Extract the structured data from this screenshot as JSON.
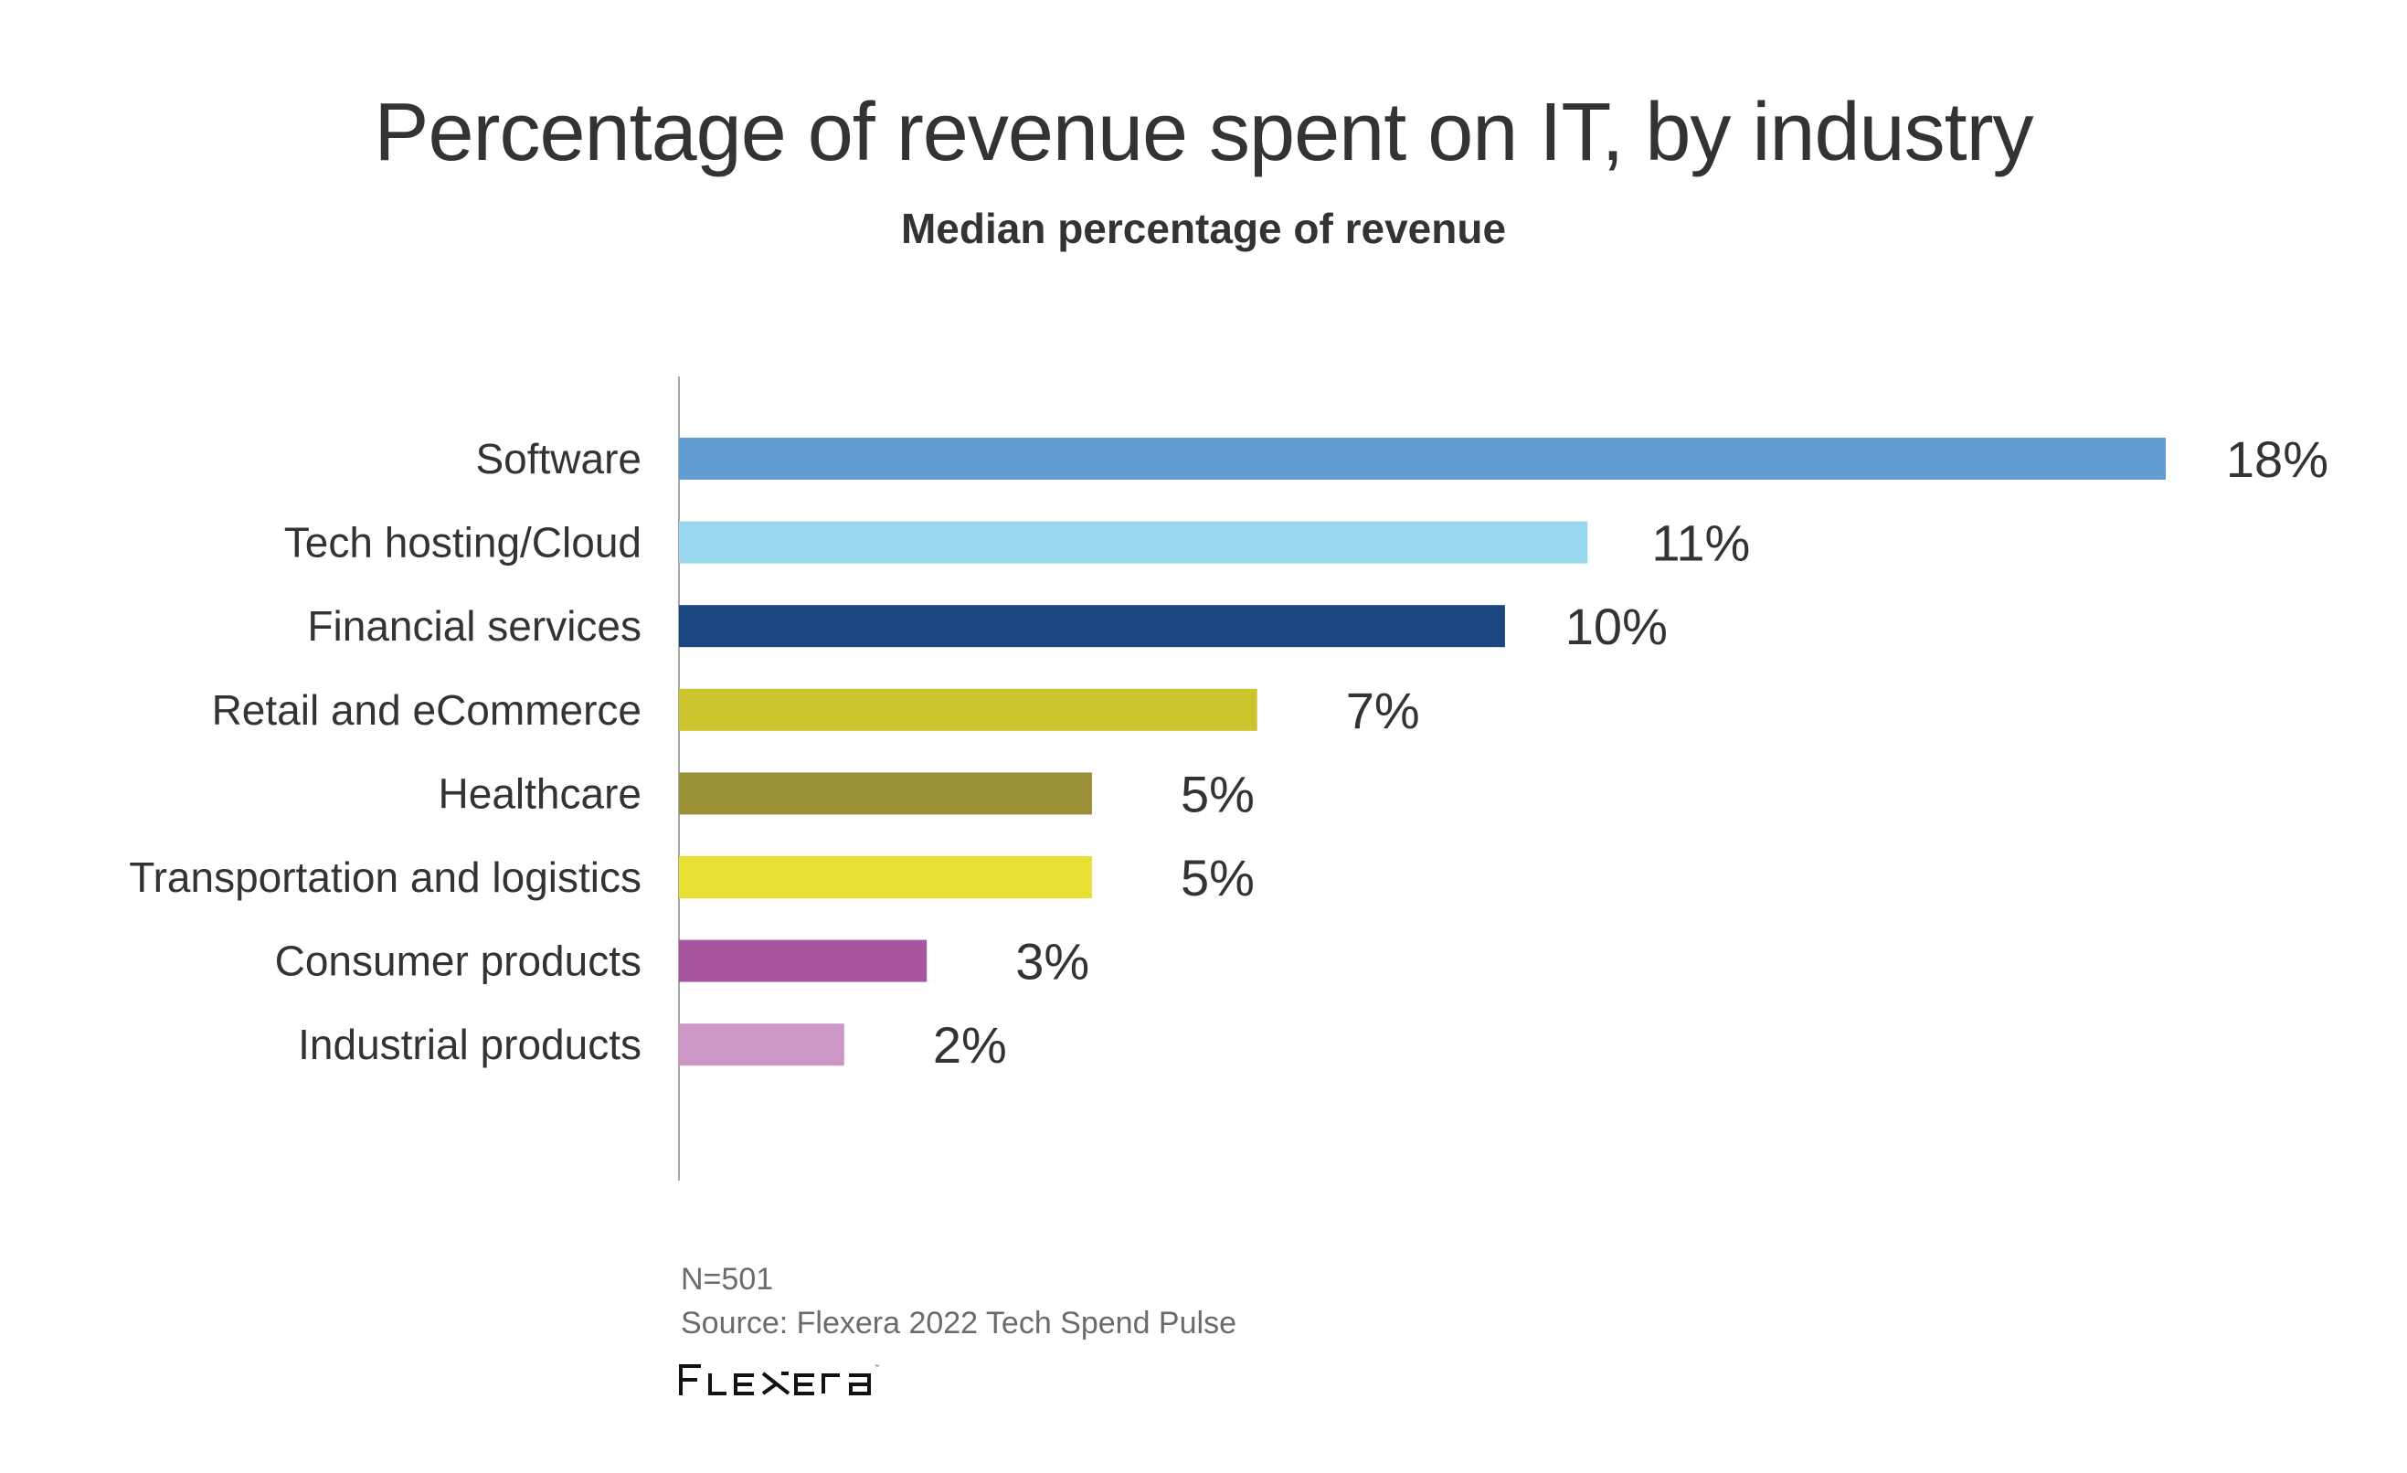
{
  "header": {
    "title": "Percentage of revenue spent on IT, by industry",
    "subtitle": "Median percentage of revenue"
  },
  "footer": {
    "sample_size": "N=501",
    "source": "Source: Flexera 2022 Tech Spend Pulse",
    "logo_text": "FLEXERA",
    "logo_icon": "flexera-logo"
  },
  "chart_data": {
    "type": "bar",
    "orientation": "horizontal",
    "title": "Percentage of revenue spent on IT, by industry",
    "subtitle": "Median percentage of revenue",
    "xlabel": "",
    "ylabel": "",
    "xlim": [
      0,
      18
    ],
    "grid": false,
    "legend": "none",
    "categories": [
      "Software",
      "Tech hosting/Cloud",
      "Financial services",
      "Retail and eCommerce",
      "Healthcare",
      "Transportation and logistics",
      "Consumer products",
      "Industrial products"
    ],
    "values": [
      18,
      11,
      10,
      7,
      5,
      5,
      3,
      2
    ],
    "value_labels": [
      "18%",
      "11%",
      "10%",
      "7%",
      "5%",
      "5%",
      "3%",
      "2%"
    ],
    "colors": [
      "#629DD3",
      "#9AD8EF",
      "#1A4780",
      "#CCC42C",
      "#9A9136",
      "#E8E034",
      "#A6559E",
      "#CD97C5"
    ],
    "axis_color": "#A6A6A6",
    "unit": "%"
  }
}
